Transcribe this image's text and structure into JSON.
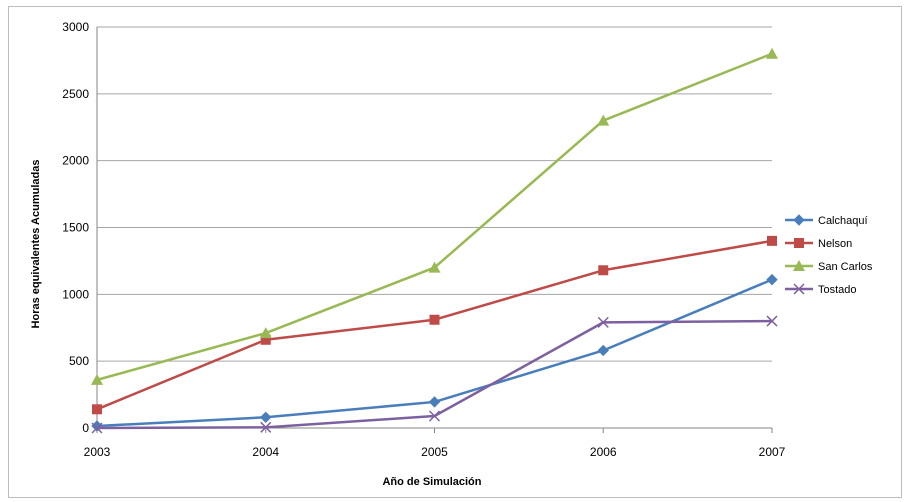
{
  "chart_data": {
    "type": "line",
    "title": "",
    "xlabel": "Año de Simulación",
    "ylabel": "Horas equivalentes Acumuladas",
    "x": [
      "2003",
      "2004",
      "2005",
      "2006",
      "2007"
    ],
    "ylim": [
      0,
      3000
    ],
    "yticks": [
      0,
      500,
      1000,
      1500,
      2000,
      2500,
      3000
    ],
    "grid": "horizontal",
    "legend_position": "right",
    "series": [
      {
        "name": "Calchaquí",
        "values": [
          15,
          80,
          195,
          580,
          1110
        ],
        "color": "#4a7ebb",
        "marker": "diamond"
      },
      {
        "name": "Nelson",
        "values": [
          140,
          660,
          810,
          1180,
          1400
        ],
        "color": "#be4b48",
        "marker": "square"
      },
      {
        "name": "San Carlos",
        "values": [
          360,
          710,
          1200,
          2300,
          2800
        ],
        "color": "#98b954",
        "marker": "triangle"
      },
      {
        "name": "Tostado",
        "values": [
          0,
          5,
          90,
          790,
          800
        ],
        "color": "#7d60a0",
        "marker": "x"
      }
    ]
  }
}
